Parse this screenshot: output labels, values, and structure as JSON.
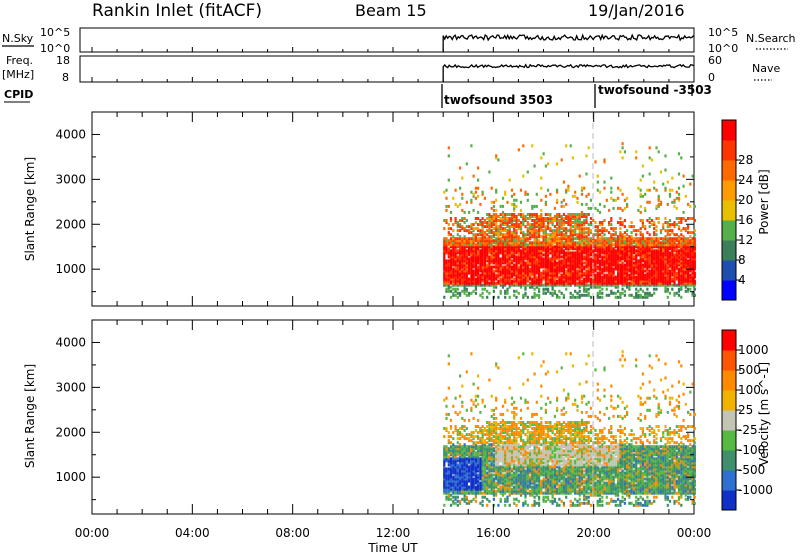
{
  "header": {
    "station": "Rankin Inlet (fitACF)",
    "beam": "Beam 15",
    "date": "19/Jan/2016"
  },
  "status": {
    "nsky_label": "N.Sky",
    "nsearch_label": "N.Search",
    "nsky_ticks": [
      "10^5",
      "10^0"
    ],
    "freq_label_1": "Freq.",
    "freq_label_2": "[MHz]",
    "freq_ticks": [
      "18",
      "8"
    ],
    "nave_label": "Nave",
    "nave_ticks": [
      "60",
      "0"
    ],
    "cpid_label": "CPID",
    "cpid_entries": [
      "twofsound 3503",
      "twofsound -3503"
    ]
  },
  "colors": {
    "power_scale": [
      "#0000ff",
      "#1e4fb0",
      "#3a7f5a",
      "#55b04a",
      "#e8c000",
      "#ff9a00",
      "#ff6a00",
      "#ff3500",
      "#ff0000"
    ],
    "velocity_scale": [
      "#1030c8",
      "#2f6fcf",
      "#3e8f6a",
      "#57b842",
      "#c4c4b4",
      "#f0b400",
      "#ff8a00",
      "#ff5500",
      "#ff0000"
    ],
    "ground_scatter": "#a0a0a0"
  },
  "chart_data": [
    {
      "type": "heatmap",
      "title": "",
      "xlabel": "Time UT",
      "ylabel": "Slant Range [km]",
      "xlim": [
        "00:00",
        "24:00"
      ],
      "ylim": [
        180,
        4500
      ],
      "x_ticks": [
        "00:00",
        "04:00",
        "08:00",
        "12:00",
        "16:00",
        "20:00",
        "00:00"
      ],
      "y_ticks": [
        "1000",
        "2000",
        "3000",
        "4000"
      ],
      "colorbar": {
        "label": "Power [dB]",
        "ticks": [
          "4",
          "8",
          "12",
          "16",
          "20",
          "24",
          "28"
        ],
        "range": [
          0,
          30
        ]
      },
      "data_coverage_start": "14:00",
      "data_coverage_end": "24:00",
      "dominant_band_km": [
        600,
        1600
      ],
      "dominant_values_dB": [
        24,
        30
      ]
    },
    {
      "type": "heatmap",
      "title": "",
      "xlabel": "Time UT",
      "ylabel": "Slant Range [km]",
      "xlim": [
        "00:00",
        "24:00"
      ],
      "ylim": [
        180,
        4500
      ],
      "x_ticks": [
        "00:00",
        "04:00",
        "08:00",
        "12:00",
        "16:00",
        "20:00",
        "00:00"
      ],
      "y_ticks": [
        "1000",
        "2000",
        "3000",
        "4000"
      ],
      "colorbar": {
        "label": "Velocity [m s^-1]",
        "ticks": [
          "1000",
          "500",
          "100",
          "25",
          "-25",
          "-100",
          "-500",
          "-1000"
        ],
        "range": [
          -1000,
          1000
        ]
      },
      "data_coverage_start": "14:00",
      "data_coverage_end": "24:00",
      "dominant_band_km": [
        600,
        1600
      ]
    }
  ]
}
